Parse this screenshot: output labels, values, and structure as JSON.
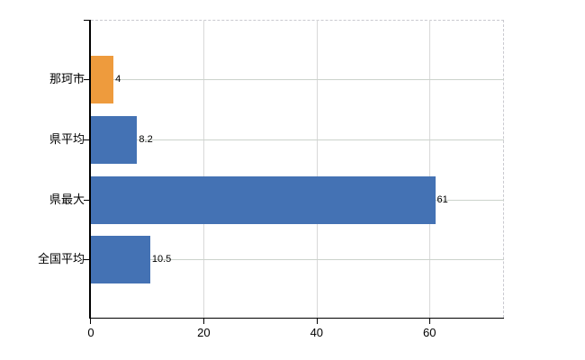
{
  "chart_data": {
    "type": "bar",
    "orientation": "horizontal",
    "title": "",
    "categories": [
      "那珂市",
      "県平均",
      "県最大",
      "全国平均"
    ],
    "values": [
      4,
      8.2,
      61,
      10.5
    ],
    "value_labels": [
      "4",
      "8.2",
      "61",
      "10.5"
    ],
    "series": [
      {
        "name": "",
        "values": [
          4,
          8.2,
          61,
          10.5
        ],
        "colors": [
          "#ee9b3d",
          "#4472b4",
          "#4472b4",
          "#4472b4"
        ]
      }
    ],
    "xlabel": "",
    "ylabel": "",
    "x_ticks": [
      0,
      20,
      40,
      60
    ],
    "x_tick_labels": [
      "0",
      "20",
      "40",
      "60"
    ],
    "xlim": [
      0,
      73.2
    ],
    "grid": "on",
    "legend": "none",
    "colors": {
      "bar_highlight": "#ee9b3d",
      "bar_default": "#4472b4",
      "gridline": "#d9d9d9",
      "axis": "#000000",
      "background": "#ffffff"
    }
  }
}
